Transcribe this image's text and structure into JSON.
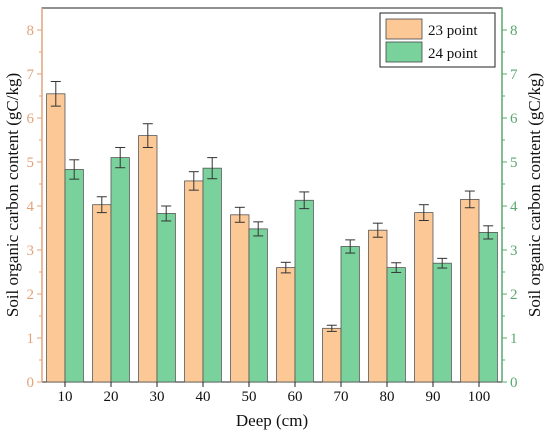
{
  "chart_data": {
    "type": "bar",
    "xlabel": "Deep (cm)",
    "ylabel_left": "Soil organic carbon content (gC/kg)",
    "ylabel_right": "Soil organic carbon content (gC/kg)",
    "ylim": [
      0,
      8.5
    ],
    "yticks": [
      0,
      1,
      2,
      3,
      4,
      5,
      6,
      7,
      8
    ],
    "categories": [
      "10",
      "20",
      "30",
      "40",
      "50",
      "60",
      "70",
      "80",
      "90",
      "100"
    ],
    "legend_position": "top-right",
    "series": [
      {
        "name": "23 point",
        "color": "#fcc896",
        "values": [
          6.55,
          4.03,
          5.6,
          4.57,
          3.8,
          2.6,
          1.22,
          3.45,
          3.85,
          4.15
        ],
        "errors": [
          0.28,
          0.18,
          0.27,
          0.21,
          0.17,
          0.12,
          0.07,
          0.16,
          0.18,
          0.19
        ]
      },
      {
        "name": "24 point",
        "color": "#79d29b",
        "values": [
          4.83,
          5.1,
          3.83,
          4.86,
          3.48,
          4.13,
          3.08,
          2.6,
          2.7,
          3.4
        ],
        "errors": [
          0.22,
          0.23,
          0.17,
          0.24,
          0.16,
          0.19,
          0.15,
          0.11,
          0.11,
          0.15
        ]
      }
    ],
    "left_axis_color": "#e2a37a",
    "right_axis_color": "#5aa86e"
  }
}
